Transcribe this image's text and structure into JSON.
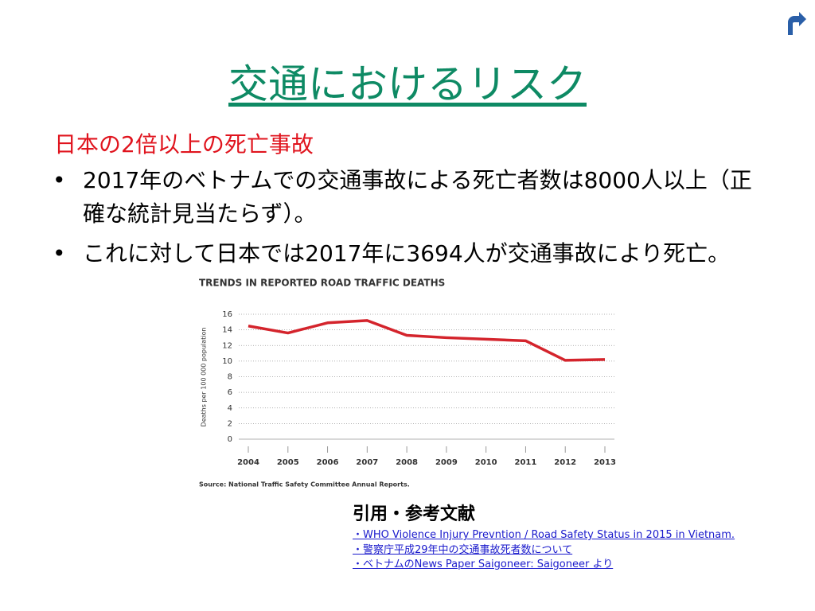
{
  "title": "交通におけるリスク",
  "subtitle": "日本の2倍以上の死亡事故",
  "bullets": [
    "2017年のベトナムでの交通事故による死亡者数は8000人以上（正確な統計見当たらず）。",
    "これに対して日本では2017年に3694人が交通事故により死亡。"
  ],
  "references": {
    "heading": "引用・参考文献",
    "items": [
      "・WHO Violence Injury Prevntion / Road Safety Status in 2015 in Vietnam.",
      "・警察庁平成29年中の交通事故死者数について",
      "・ベトナムのNews Paper Saigoneer: Saigoneer より"
    ]
  },
  "chart_data": {
    "type": "line",
    "title": "TRENDS IN REPORTED ROAD TRAFFIC DEATHS",
    "y_label": "Deaths per 100 000 population",
    "source": "Source: National Traffic Safety Committee Annual Reports.",
    "categories": [
      "2004",
      "2005",
      "2006",
      "2007",
      "2008",
      "2009",
      "2010",
      "2011",
      "2012",
      "2013"
    ],
    "series": [
      {
        "name": "Deaths",
        "color": "#d4242c",
        "values": [
          14.5,
          13.6,
          14.9,
          15.2,
          13.3,
          13.0,
          12.8,
          12.6,
          10.1,
          10.2
        ]
      }
    ],
    "ylim": [
      0,
      16
    ],
    "yticks": [
      0,
      2,
      4,
      6,
      8,
      10,
      12,
      14,
      16
    ],
    "grid": true
  }
}
